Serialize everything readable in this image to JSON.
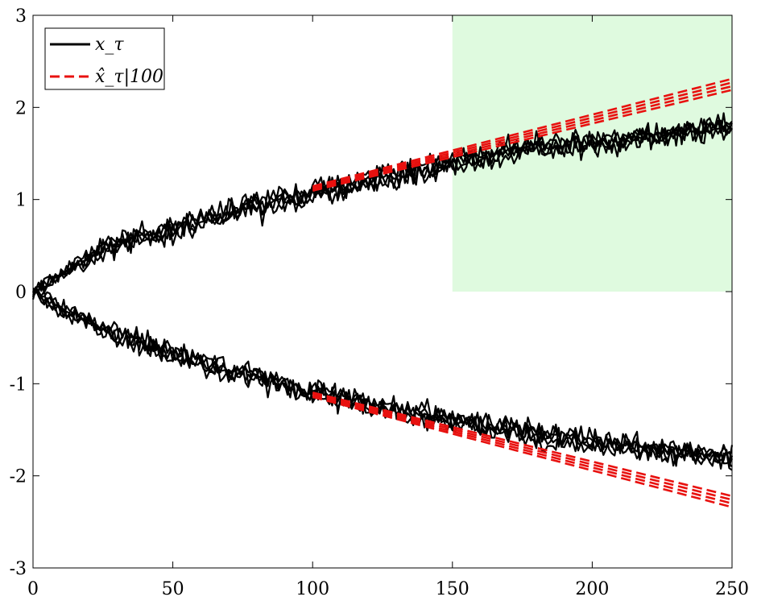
{
  "chart_data": {
    "type": "line",
    "title": "",
    "xlabel": "",
    "ylabel": "",
    "xlim": [
      0,
      250
    ],
    "ylim": [
      -3,
      3
    ],
    "xticks": [
      "0",
      "50",
      "100",
      "150",
      "200",
      "250"
    ],
    "yticks": [
      "-3",
      "-2",
      "-1",
      "0",
      "1",
      "2",
      "3"
    ],
    "grid": false,
    "legend_placement": "top-left",
    "legend": [
      {
        "label": "x_τ",
        "style": "solid",
        "color": "#000000"
      },
      {
        "label": "x̂_τ|100",
        "style": "dashed",
        "color": "#e8110f"
      }
    ],
    "shaded_region": {
      "x": [
        150,
        250
      ],
      "y": [
        0,
        3
      ],
      "color": "#dffadf"
    },
    "series": [
      {
        "role": "trajectories",
        "branch": "upper",
        "count": 5,
        "color": "#000000",
        "x": [
          0,
          25,
          50,
          75,
          100,
          125,
          150,
          175,
          200,
          225,
          250
        ],
        "y_mean": [
          0.0,
          0.45,
          0.7,
          0.9,
          1.05,
          1.25,
          1.4,
          1.55,
          1.62,
          1.7,
          1.8
        ],
        "noise": 0.09
      },
      {
        "role": "trajectories",
        "branch": "lower",
        "count": 5,
        "color": "#000000",
        "x": [
          0,
          25,
          50,
          75,
          100,
          125,
          150,
          175,
          200,
          225,
          250
        ],
        "y_mean": [
          0.0,
          -0.4,
          -0.68,
          -0.9,
          -1.08,
          -1.25,
          -1.4,
          -1.52,
          -1.62,
          -1.72,
          -1.82
        ],
        "noise": 0.09
      },
      {
        "role": "predictions",
        "branch": "upper",
        "count": 4,
        "color": "#e8110f",
        "x": [
          100,
          250
        ],
        "y": [
          1.12,
          2.25
        ],
        "spread": 0.04
      },
      {
        "role": "predictions",
        "branch": "lower",
        "count": 4,
        "color": "#e8110f",
        "x": [
          100,
          250
        ],
        "y": [
          -1.12,
          -2.28
        ],
        "spread": 0.04
      }
    ]
  }
}
